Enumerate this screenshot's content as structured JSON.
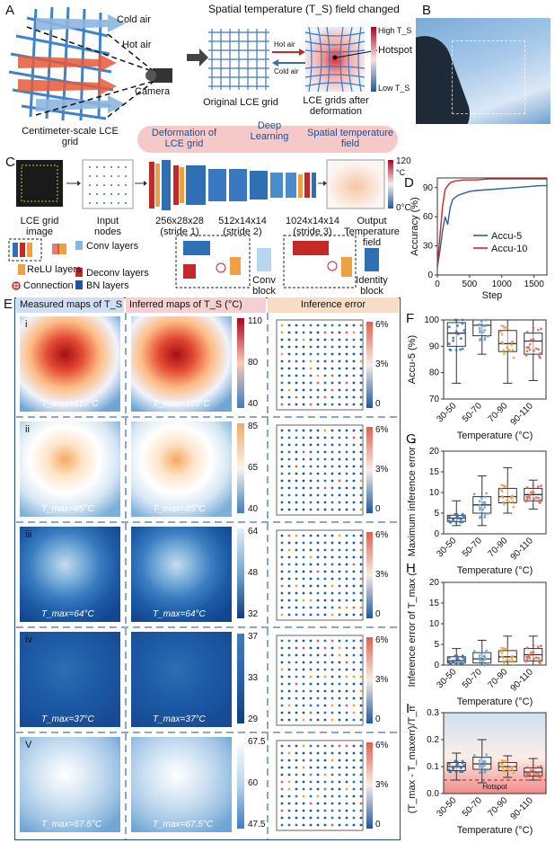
{
  "panel_letters": [
    "A",
    "B",
    "C",
    "D",
    "E",
    "F",
    "G",
    "H",
    "I"
  ],
  "panelA": {
    "title": "Spatial temperature (T_S) field changed",
    "cold_air": "Cold air",
    "hot_air": "Hot air",
    "camera": "Camera",
    "grid_caption": "Centimeter-scale LCE grid",
    "original": "Original LCE grid",
    "after": "LCE grids after deformation",
    "hot_air2": "Hot air",
    "cold_air2": "Cold air",
    "high": "High T_S",
    "low": "Low T_S",
    "hotspot": "Hotspot",
    "pill_left": "Deformation of LCE grid",
    "pill_mid": "Deep Learning",
    "pill_right": "Spatial temperature field"
  },
  "panelC": {
    "img_label": "LCE grid image",
    "input_label": "Input nodes",
    "s1": "256x28x28 (stride 1)",
    "s2": "512x14x14 (stride 2)",
    "s3": "1024x14x14 (stride 3)",
    "output": "Output Temperature field",
    "cb_top": "120",
    "cb_unit": "°C",
    "cb_bottom": "0°C",
    "legend": {
      "conv": "Conv layers",
      "relu": "ReLU layers",
      "deconv": "Deconv layers",
      "connection": "Connection",
      "bn": "BN layers",
      "conv_block": "Conv block",
      "identity_block": "Identity block"
    }
  },
  "panelE": {
    "headers": [
      "Measured maps of T_S",
      "Inferred maps of T_S (°C)",
      "Inference error"
    ],
    "rows": [
      {
        "roman": "i",
        "tmax": "T_max=110°C",
        "ticks": [
          "110",
          "80",
          "40"
        ],
        "err_ticks": [
          "6%",
          "3%",
          "0"
        ]
      },
      {
        "roman": "ii",
        "tmax": "T_max=85°C",
        "ticks": [
          "85",
          "65",
          "40"
        ],
        "err_ticks": [
          "6%",
          "3%",
          "0"
        ]
      },
      {
        "roman": "iii",
        "tmax": "T_max=64°C",
        "ticks": [
          "64",
          "48",
          "32"
        ],
        "err_ticks": [
          "6%",
          "3%",
          "0"
        ]
      },
      {
        "roman": "iv",
        "tmax": "T_max=37°C",
        "ticks": [
          "37",
          "33",
          "29"
        ],
        "err_ticks": [
          "6%",
          "3%",
          "0"
        ]
      },
      {
        "roman": "V",
        "tmax": "T_max=67.5°C",
        "ticks": [
          "67.5",
          "60",
          "47.5"
        ],
        "err_ticks": [
          "6%",
          "3%",
          "0"
        ]
      }
    ]
  },
  "chart_data": [
    {
      "id": "D",
      "type": "line",
      "xlabel": "Step",
      "ylabel": "Accuracy (%)",
      "xlim": [
        0,
        1700
      ],
      "ylim": [
        0,
        100
      ],
      "xticks": [
        "0",
        "500",
        "1000",
        "1500"
      ],
      "yticks": [
        "0",
        "30",
        "60",
        "90"
      ],
      "legend_position": "center-right",
      "series": [
        {
          "name": "Accu-5",
          "color": "#2f5f9e",
          "x": [
            0,
            40,
            80,
            120,
            160,
            200,
            240,
            280,
            320,
            400,
            500,
            600,
            800,
            1000,
            1200,
            1400,
            1600,
            1700
          ],
          "y": [
            8,
            25,
            45,
            60,
            52,
            70,
            78,
            80,
            82,
            84,
            86,
            87,
            88,
            89,
            90,
            91,
            92,
            92
          ]
        },
        {
          "name": "Accu-10",
          "color": "#c62828",
          "x": [
            0,
            40,
            80,
            120,
            160,
            200,
            240,
            280,
            320,
            400,
            600,
            800,
            1000,
            1200,
            1400,
            1600,
            1700
          ],
          "y": [
            10,
            40,
            70,
            88,
            92,
            95,
            96,
            97,
            97,
            98,
            98,
            99,
            99,
            99,
            99,
            99,
            99
          ]
        }
      ]
    },
    {
      "id": "F",
      "type": "box",
      "categories": [
        "30-50",
        "50-70",
        "70-90",
        "90-110"
      ],
      "ylabel": "Accu-5 (%)",
      "xlabel": "Temperature (°C)",
      "ylim": [
        70,
        100
      ],
      "yticks": [
        "70",
        "80",
        "90",
        "100"
      ],
      "colors": [
        "#2e6fb5",
        "#6a9fd0",
        "#f0a040",
        "#e06050"
      ],
      "boxes": [
        {
          "q1": 90,
          "median": 95,
          "q3": 99,
          "min": 76,
          "max": 100
        },
        {
          "q1": 94,
          "median": 98,
          "q3": 100,
          "min": 87,
          "max": 100
        },
        {
          "q1": 88,
          "median": 91,
          "q3": 96,
          "min": 76,
          "max": 100
        },
        {
          "q1": 87,
          "median": 92,
          "q3": 95,
          "min": 77,
          "max": 100
        }
      ]
    },
    {
      "id": "G",
      "type": "box",
      "categories": [
        "30-50",
        "50-70",
        "70-90",
        "90-110"
      ],
      "ylabel": "Maximum inference error (%)",
      "xlabel": "Temperature (°C)",
      "ylim": [
        0,
        20
      ],
      "yticks": [
        "0",
        "5",
        "10",
        "15",
        "20"
      ],
      "colors": [
        "#2e6fb5",
        "#6a9fd0",
        "#f0a040",
        "#e06050"
      ],
      "boxes": [
        {
          "q1": 3,
          "median": 3.8,
          "q3": 4.5,
          "min": 2,
          "max": 8
        },
        {
          "q1": 5,
          "median": 7,
          "q3": 9,
          "min": 2,
          "max": 14
        },
        {
          "q1": 7.5,
          "median": 9,
          "q3": 11,
          "min": 5,
          "max": 16
        },
        {
          "q1": 8,
          "median": 9.5,
          "q3": 11,
          "min": 6,
          "max": 13
        }
      ]
    },
    {
      "id": "H",
      "type": "box",
      "categories": [
        "30-50",
        "50-70",
        "70-90",
        "90-110"
      ],
      "ylabel": "Inference error of T_max (%)",
      "xlabel": "Temperature (°C)",
      "ylim": [
        0,
        20
      ],
      "yticks": [
        "0",
        "5",
        "10",
        "15",
        "20"
      ],
      "colors": [
        "#2e6fb5",
        "#6a9fd0",
        "#f0a040",
        "#e06050"
      ],
      "boxes": [
        {
          "q1": 0.5,
          "median": 1,
          "q3": 2,
          "min": 0,
          "max": 4
        },
        {
          "q1": 0.5,
          "median": 1.5,
          "q3": 3,
          "min": 0,
          "max": 6
        },
        {
          "q1": 0.8,
          "median": 2,
          "q3": 3.5,
          "min": 0,
          "max": 7
        },
        {
          "q1": 1,
          "median": 2.5,
          "q3": 4,
          "min": 0,
          "max": 7
        }
      ]
    },
    {
      "id": "I",
      "type": "box",
      "categories": [
        "30-50",
        "50-70",
        "70-90",
        "90-110"
      ],
      "ylabel": "(T_max - T_maxerr)/T_max",
      "xlabel": "Temperature (°C)",
      "ylim": [
        0,
        0.3
      ],
      "yticks": [
        "0.0",
        "0.1",
        "0.2",
        "0.3"
      ],
      "hotspot_label": "Hotspot",
      "hotspot_threshold": 0.05,
      "colors": [
        "#2e6fb5",
        "#6a9fd0",
        "#f0a040",
        "#e06050"
      ],
      "boxes": [
        {
          "q1": 0.085,
          "median": 0.1,
          "q3": 0.115,
          "min": 0.05,
          "max": 0.15
        },
        {
          "q1": 0.09,
          "median": 0.11,
          "q3": 0.135,
          "min": 0.04,
          "max": 0.2
        },
        {
          "q1": 0.085,
          "median": 0.1,
          "q3": 0.115,
          "min": 0.06,
          "max": 0.14
        },
        {
          "q1": 0.065,
          "median": 0.08,
          "q3": 0.095,
          "min": 0.05,
          "max": 0.13
        }
      ]
    }
  ]
}
